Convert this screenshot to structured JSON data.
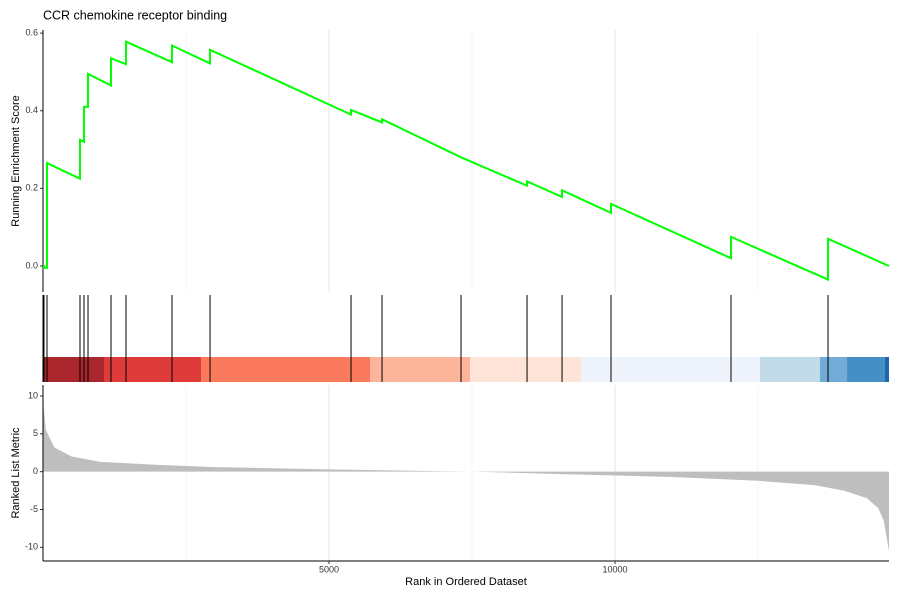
{
  "chart_data": {
    "type": "gsea",
    "title": "CCR chemokine receptor binding",
    "xlabel": "Rank in Ordered Dataset",
    "xlim": [
      0,
      14790
    ],
    "xticks": [
      5000,
      10000
    ],
    "xgrid_minor": [
      2500,
      7500,
      12500
    ],
    "es": {
      "ylabel": "Running Enrichment Score",
      "ylim": [
        -0.067,
        0.608
      ],
      "yticks": [
        {
          "value": 0,
          "label": "0.0"
        },
        0.2,
        0.4,
        0.6
      ],
      "color": "#00ff00",
      "x": [
        0,
        17,
        17,
        70,
        70,
        647,
        647,
        717,
        717,
        787,
        787,
        1189,
        1189,
        1451,
        1451,
        2255,
        2255,
        2920,
        2920,
        5385,
        5385,
        5927,
        5927,
        7308,
        8462,
        8462,
        9074,
        9074,
        9930,
        9930,
        12028,
        12028,
        13724,
        13724,
        14790
      ],
      "values": [
        0,
        0,
        -0.005,
        -0.005,
        0.265,
        0.225,
        0.325,
        0.32,
        0.41,
        0.41,
        0.495,
        0.465,
        0.535,
        0.52,
        0.578,
        0.525,
        0.568,
        0.522,
        0.557,
        0.39,
        0.402,
        0.37,
        0.378,
        0.28,
        0.207,
        0.218,
        0.178,
        0.195,
        0.137,
        0.16,
        0.02,
        0.075,
        -0.035,
        0.07,
        0
      ]
    },
    "hits": {
      "x": [
        17,
        70,
        647,
        717,
        787,
        1189,
        1451,
        2255,
        2920,
        5385,
        5927,
        7308,
        8462,
        9074,
        9930,
        12028,
        13724
      ]
    },
    "color_bar": [
      {
        "start": 0,
        "end": 1066,
        "color": "#a9272d"
      },
      {
        "start": 1066,
        "end": 2762,
        "color": "#e03b3b"
      },
      {
        "start": 2762,
        "end": 5717,
        "color": "#fb795c"
      },
      {
        "start": 5717,
        "end": 7465,
        "color": "#fcb49a"
      },
      {
        "start": 7465,
        "end": 9406,
        "color": "#fde3d8"
      },
      {
        "start": 9406,
        "end": 12535,
        "color": "#eef3fb"
      },
      {
        "start": 12535,
        "end": 13584,
        "color": "#c1dbe9"
      },
      {
        "start": 13584,
        "end": 14056,
        "color": "#72acd6"
      },
      {
        "start": 14056,
        "end": 14720,
        "color": "#4490c6"
      },
      {
        "start": 14720,
        "end": 14790,
        "color": "#2166ac"
      }
    ],
    "metric": {
      "ylabel": "Ranked List Metric",
      "ylim": [
        -11.8,
        11.45
      ],
      "yticks": [
        10,
        5,
        0,
        -5,
        -10
      ],
      "color": "#bebebe",
      "x": [
        0,
        50,
        200,
        500,
        1000,
        2000,
        3000,
        5000,
        7000,
        7500,
        9000,
        11000,
        12500,
        13500,
        14000,
        14400,
        14600,
        14700,
        14790
      ],
      "values": [
        9.5,
        5.5,
        3.2,
        2.0,
        1.3,
        0.9,
        0.6,
        0.3,
        0.05,
        0,
        -0.3,
        -0.7,
        -1.2,
        -1.8,
        -2.5,
        -3.5,
        -4.8,
        -6.5,
        -10.5
      ]
    }
  }
}
